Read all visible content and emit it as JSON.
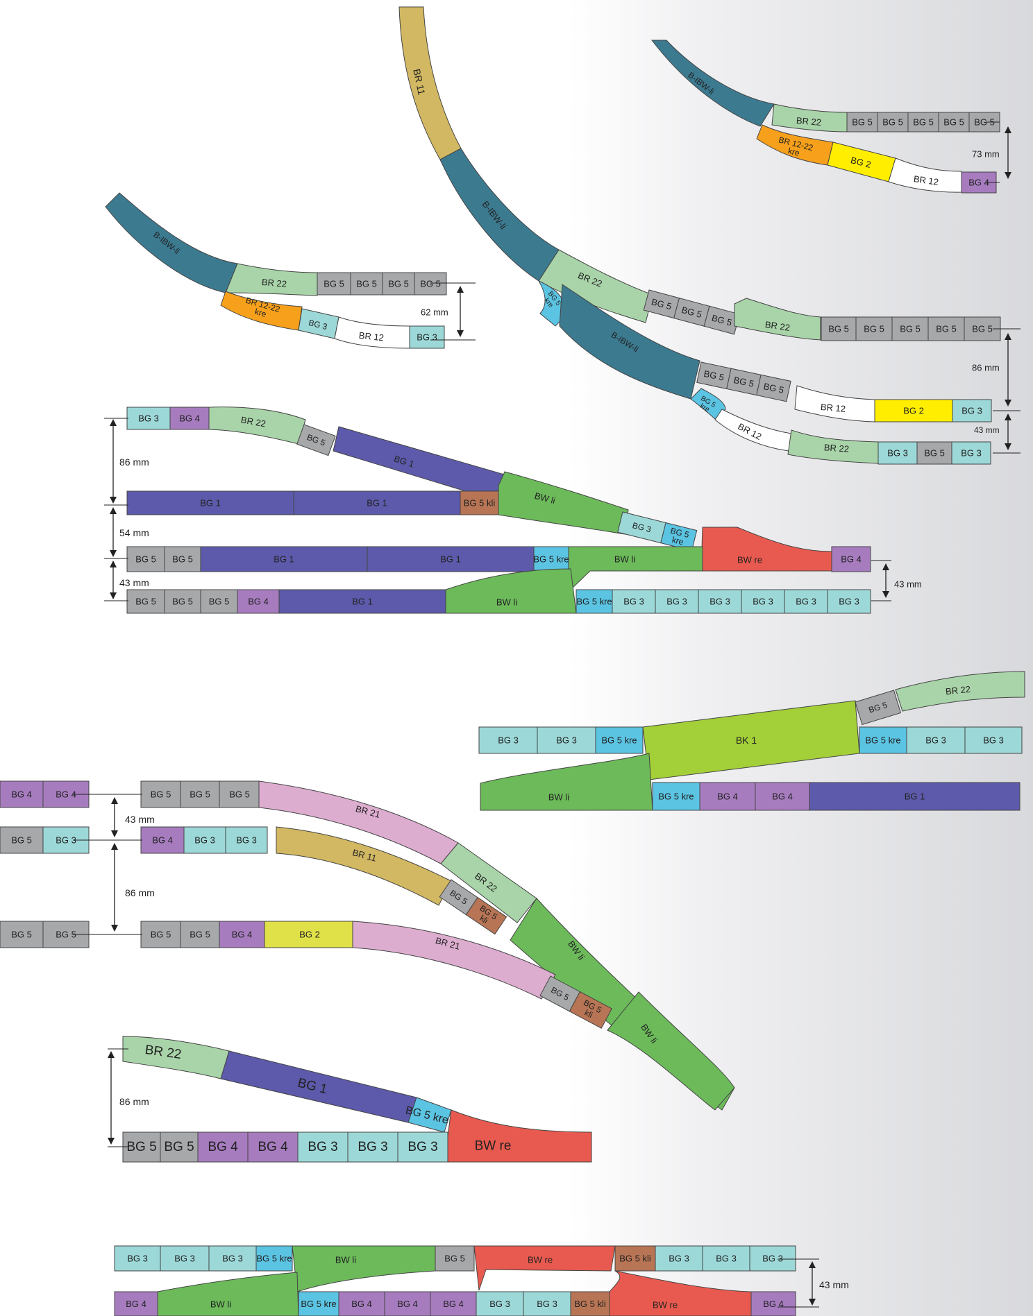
{
  "colors": {
    "BG 1": "#5d5aab",
    "BG 2": "#ffee00",
    "BG 3": "#9dd8d8",
    "BG 4": "#a77cbf",
    "BG 5": "#a6a8aa",
    "BG 5 kre": "#5bc4e2",
    "BG 5 kli": "#b87555",
    "BR 11": "#d2b862",
    "BR 12": "#ffffff",
    "BR 12-22 kre": "#f7a01b",
    "BR 21": "#ddadd0",
    "BR 22": "#a9d4a9",
    "B-IBW-li": "#3c7a90",
    "BW li": "#6cba5a",
    "BW re": "#e85a4f",
    "BK 1": "#a3cf38",
    "BG 2b": "#e0e048"
  },
  "labels": {
    "bg1": "BG 1",
    "bg2": "BG 2",
    "bg3": "BG 3",
    "bg4": "BG 4",
    "bg5": "BG 5",
    "bg5kre": "BG 5 kre",
    "bg5kli": "BG 5 kli",
    "br11": "BR 11",
    "br12": "BR 12",
    "br1222": "BR 12-22 kre",
    "br21": "BR 21",
    "br22": "BR 22",
    "ibw": "B-IBW-li",
    "bwli": "BW li",
    "bwre": "BW re",
    "bk1": "BK 1"
  },
  "dimensions": {
    "d73": "73 mm",
    "d62": "62 mm",
    "d86": "86 mm",
    "d43": "43 mm",
    "d54": "54 mm"
  }
}
